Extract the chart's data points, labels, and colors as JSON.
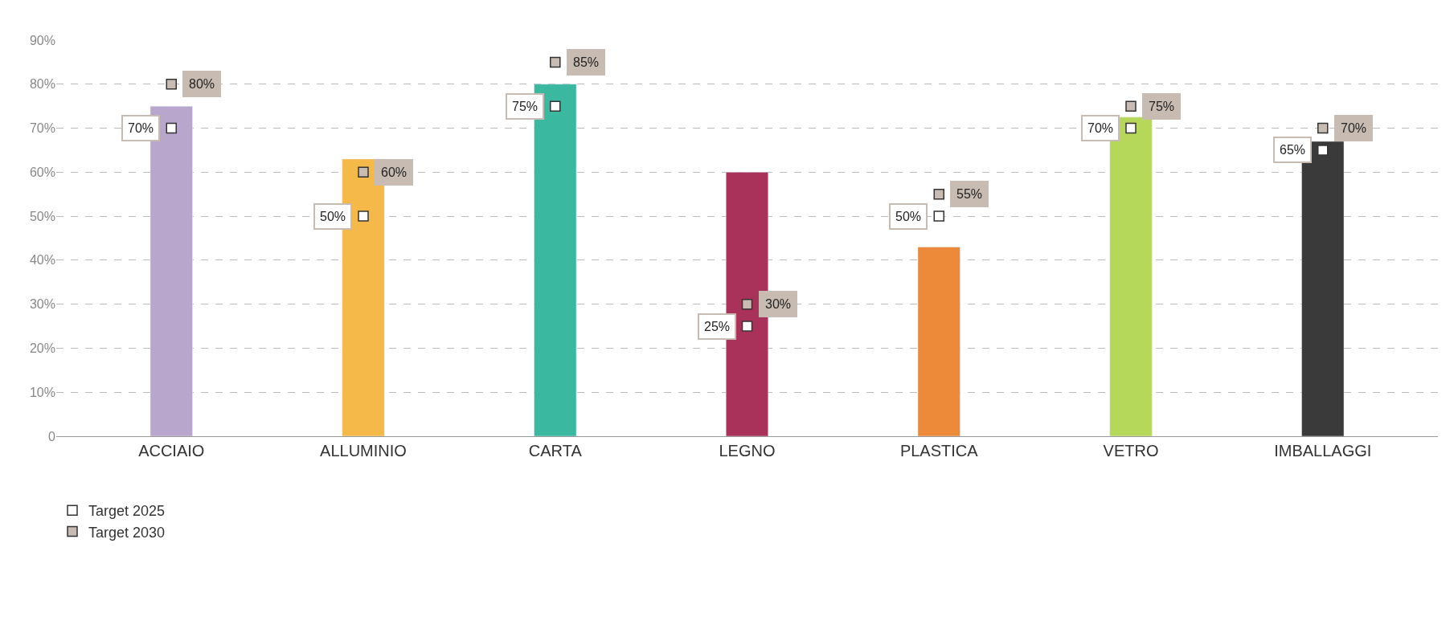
{
  "chart_data": {
    "type": "bar",
    "categories": [
      "ACCIAIO",
      "ALLUMINIO",
      "CARTA",
      "LEGNO",
      "PLASTICA",
      "VETRO",
      "IMBALLAGGI"
    ],
    "values": [
      75,
      63,
      80,
      60,
      43,
      72.5,
      67
    ],
    "colors": [
      "#b9a6cc",
      "#f5b94a",
      "#3bb8a0",
      "#a8325a",
      "#ec8a3a",
      "#b5d75a",
      "#3a3a3a"
    ],
    "series": [
      {
        "name": "Target 2025",
        "type": "scatter",
        "color": "#ffffff",
        "values": [
          70,
          50,
          75,
          25,
          50,
          70,
          65
        ],
        "value_labels": [
          "70%",
          "50%",
          "75%",
          "25%",
          "50%",
          "70%",
          "65%"
        ]
      },
      {
        "name": "Target 2030",
        "type": "scatter",
        "color": "#c8bcb2",
        "values": [
          80,
          60,
          85,
          30,
          55,
          75,
          70
        ],
        "value_labels": [
          "80%",
          "60%",
          "85%",
          "30%",
          "55%",
          "75%",
          "70%"
        ]
      }
    ],
    "ylim": [
      0,
      90
    ],
    "yticks": [
      0,
      {
        "value": 10,
        "label": "10%"
      },
      {
        "value": 20,
        "label": "20%"
      },
      {
        "value": 30,
        "label": "30%"
      },
      {
        "value": 40,
        "label": "40%"
      },
      {
        "value": 50,
        "label": "50%"
      },
      {
        "value": 60,
        "label": "60%"
      },
      {
        "value": 70,
        "label": "70%"
      },
      {
        "value": 80,
        "label": "80%"
      },
      {
        "value": 90,
        "label": "90%"
      }
    ],
    "grid": "y",
    "legend": "bottom left"
  }
}
